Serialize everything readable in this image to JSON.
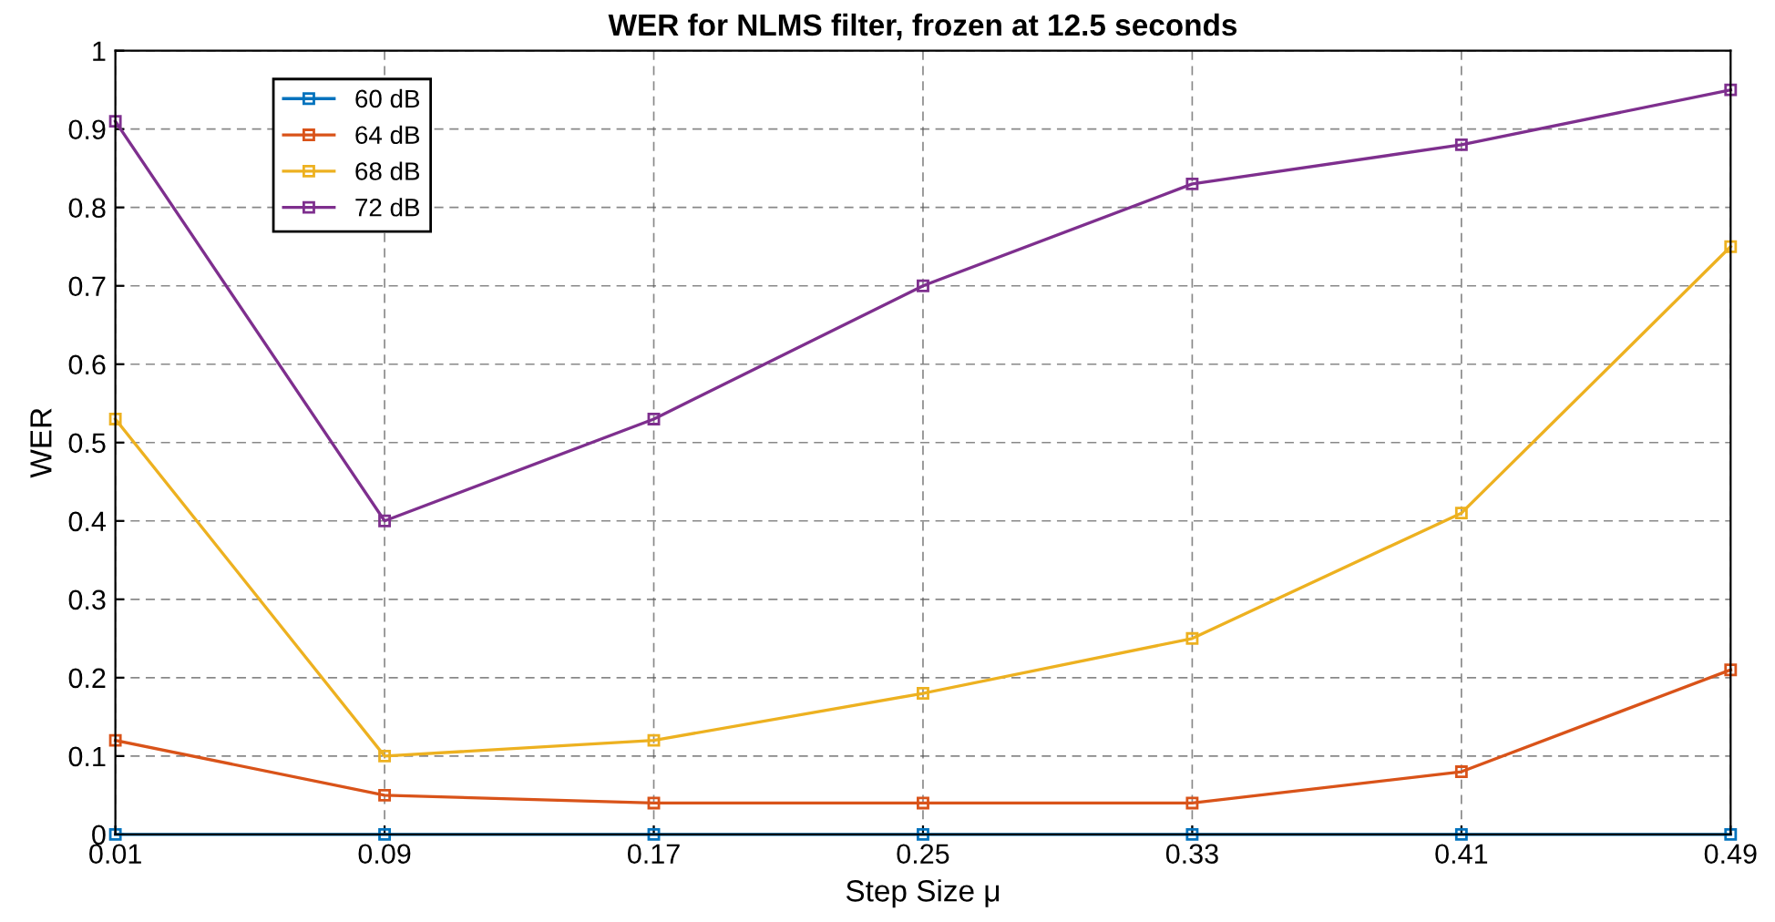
{
  "chart_data": {
    "type": "line",
    "title": "WER for NLMS filter, frozen at 12.5 seconds",
    "xlabel": "Step Size μ",
    "ylabel": "WER",
    "x": [
      0.01,
      0.09,
      0.17,
      0.25,
      0.33,
      0.41,
      0.49
    ],
    "series": [
      {
        "name": "60 dB",
        "color": "#0072bd",
        "values": [
          0,
          0,
          0,
          0,
          0,
          0,
          0
        ]
      },
      {
        "name": "64 dB",
        "color": "#d95319",
        "values": [
          0.12,
          0.05,
          0.04,
          0.04,
          0.04,
          0.08,
          0.21
        ]
      },
      {
        "name": "68 dB",
        "color": "#edb120",
        "values": [
          0.53,
          0.1,
          0.12,
          0.18,
          0.25,
          0.41,
          0.75
        ]
      },
      {
        "name": "72 dB",
        "color": "#7e2f8e",
        "values": [
          0.91,
          0.4,
          0.53,
          0.7,
          0.83,
          0.88,
          0.95
        ]
      }
    ],
    "xlim": [
      0.01,
      0.49
    ],
    "xticks": [
      0.01,
      0.09,
      0.17,
      0.25,
      0.33,
      0.41,
      0.49
    ],
    "ylim": [
      0,
      1
    ],
    "yticks": [
      0,
      0.1,
      0.2,
      0.3,
      0.4,
      0.5,
      0.6,
      0.7,
      0.8,
      0.9,
      1
    ],
    "grid": true,
    "legend": "top left",
    "marker": "square",
    "line_style": "solid"
  }
}
